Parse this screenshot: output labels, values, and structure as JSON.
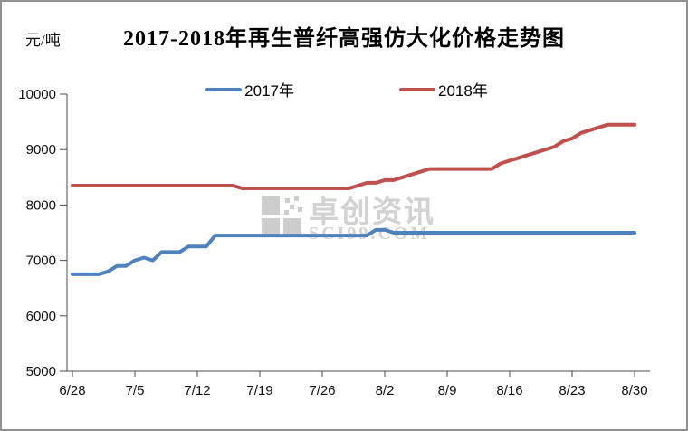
{
  "title": "2017-2018年再生普纤高强仿大化价格走势图",
  "watermark": {
    "name": "卓创资讯",
    "domain": "SCI99.COM"
  },
  "chart_data": {
    "type": "line",
    "title": "2017-2018年再生普纤高强仿大化价格走势图",
    "ylabel_unit": "元/吨",
    "xlabel": "",
    "ylim": [
      5000,
      10000
    ],
    "y_ticks": [
      5000,
      6000,
      7000,
      8000,
      9000,
      10000
    ],
    "x_tick_labels": [
      "6/28",
      "7/5",
      "7/12",
      "7/19",
      "7/26",
      "8/2",
      "8/9",
      "8/16",
      "8/23",
      "8/30"
    ],
    "tick_every_days": 7,
    "grid": false,
    "legend_position": "top",
    "x": [
      "6/28",
      "6/29",
      "6/30",
      "7/1",
      "7/2",
      "7/3",
      "7/4",
      "7/5",
      "7/6",
      "7/7",
      "7/8",
      "7/9",
      "7/10",
      "7/11",
      "7/12",
      "7/13",
      "7/14",
      "7/15",
      "7/16",
      "7/17",
      "7/18",
      "7/19",
      "7/20",
      "7/21",
      "7/22",
      "7/23",
      "7/24",
      "7/25",
      "7/26",
      "7/27",
      "7/28",
      "7/29",
      "7/30",
      "7/31",
      "8/1",
      "8/2",
      "8/3",
      "8/4",
      "8/5",
      "8/6",
      "8/7",
      "8/8",
      "8/9",
      "8/10",
      "8/11",
      "8/12",
      "8/13",
      "8/14",
      "8/15",
      "8/16",
      "8/17",
      "8/18",
      "8/19",
      "8/20",
      "8/21",
      "8/22",
      "8/23",
      "8/24",
      "8/25",
      "8/26",
      "8/27",
      "8/28",
      "8/29",
      "8/30"
    ],
    "series": [
      {
        "name": "2017年",
        "color": "#4f81bd",
        "values": [
          6750,
          6750,
          6750,
          6750,
          6800,
          6900,
          6900,
          7000,
          7050,
          7000,
          7150,
          7150,
          7150,
          7250,
          7250,
          7250,
          7450,
          7450,
          7450,
          7450,
          7450,
          7450,
          7450,
          7450,
          7450,
          7450,
          7450,
          7450,
          7450,
          7450,
          7450,
          7450,
          7450,
          7450,
          7550,
          7550,
          7500,
          7500,
          7500,
          7500,
          7500,
          7500,
          7500,
          7500,
          7500,
          7500,
          7500,
          7500,
          7500,
          7500,
          7500,
          7500,
          7500,
          7500,
          7500,
          7500,
          7500,
          7500,
          7500,
          7500,
          7500,
          7500,
          7500,
          7500
        ]
      },
      {
        "name": "2018年",
        "color": "#c0504d",
        "values": [
          8350,
          8350,
          8350,
          8350,
          8350,
          8350,
          8350,
          8350,
          8350,
          8350,
          8350,
          8350,
          8350,
          8350,
          8350,
          8350,
          8350,
          8350,
          8350,
          8300,
          8300,
          8300,
          8300,
          8300,
          8300,
          8300,
          8300,
          8300,
          8300,
          8300,
          8300,
          8300,
          8350,
          8400,
          8400,
          8450,
          8450,
          8500,
          8550,
          8600,
          8650,
          8650,
          8650,
          8650,
          8650,
          8650,
          8650,
          8650,
          8750,
          8800,
          8850,
          8900,
          8950,
          9000,
          9050,
          9150,
          9200,
          9300,
          9350,
          9400,
          9450,
          9450,
          9450,
          9450
        ]
      }
    ]
  }
}
